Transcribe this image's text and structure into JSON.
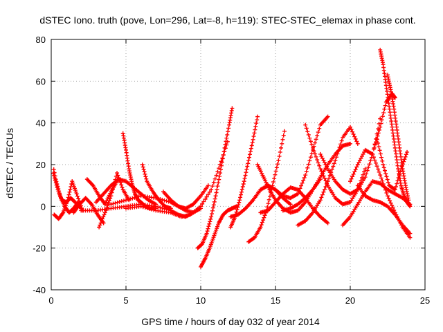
{
  "chart_data": {
    "type": "scatter",
    "title": "dSTEC Iono. truth (pove, Lon=296, Lat=-8, h=119): STEC-STEC_elemax in phase cont.",
    "xlabel": "GPS time / hours of day 032 of year 2014",
    "ylabel": "dSTEC  / TECUs",
    "xlim": [
      0,
      25
    ],
    "ylim": [
      -40,
      80
    ],
    "xticks": [
      0,
      5,
      10,
      15,
      20,
      25
    ],
    "yticks": [
      -40,
      -20,
      0,
      20,
      40,
      60,
      80
    ],
    "grid": true,
    "marker": "+",
    "color": "#ff0000",
    "series": [
      {
        "x": [
          0.0,
          0.3,
          0.6,
          0.9,
          1.2,
          1.5,
          1.8
        ],
        "y": [
          24,
          13,
          5,
          0,
          -3,
          -1,
          2
        ]
      },
      {
        "x": [
          0.1,
          0.4,
          0.7,
          1.0,
          1.3,
          1.6,
          2.0
        ],
        "y": [
          17,
          9,
          3,
          2,
          4,
          2,
          -1
        ]
      },
      {
        "x": [
          0.2,
          0.5,
          0.8,
          1.1,
          1.4,
          1.7,
          2.1
        ],
        "y": [
          -4,
          -6,
          -3,
          3,
          12,
          6,
          -2
        ]
      },
      {
        "x": [
          1.5,
          1.9,
          2.3,
          2.7,
          3.1,
          3.5
        ],
        "y": [
          -3,
          1,
          4,
          1,
          -4,
          -8
        ]
      },
      {
        "x": [
          2.4,
          2.8,
          3.2,
          3.6,
          4.0,
          4.4
        ],
        "y": [
          13,
          10,
          5,
          1,
          7,
          12
        ]
      },
      {
        "x": [
          3.2,
          3.6,
          4.0,
          4.4,
          4.8,
          5.2
        ],
        "y": [
          -10,
          -3,
          5,
          16,
          8,
          3
        ]
      },
      {
        "x": [
          3.0,
          3.5,
          4.0,
          4.5,
          5.0,
          5.5,
          6.0,
          6.5,
          7.0
        ],
        "y": [
          2,
          6,
          10,
          13,
          12,
          9,
          6,
          3,
          1
        ]
      },
      {
        "x": [
          4.8,
          5.0,
          5.2,
          5.4,
          5.6,
          5.8,
          6.0,
          6.3,
          6.6,
          7.0
        ],
        "y": [
          35,
          27,
          18,
          11,
          6,
          3,
          2,
          0,
          -1,
          -1
        ]
      },
      {
        "x": [
          6.1,
          6.4,
          6.8,
          7.2,
          7.6,
          8.0
        ],
        "y": [
          20,
          12,
          7,
          3,
          0,
          -1
        ]
      },
      {
        "x": [
          2.0,
          3.0,
          4.0,
          5.0,
          6.0,
          7.0,
          8.0,
          8.5,
          9.0,
          9.5
        ],
        "y": [
          -2,
          -2,
          -1,
          0,
          1,
          0,
          -2,
          -4,
          -5,
          -3
        ]
      },
      {
        "x": [
          4.0,
          5.0,
          6.0,
          7.0,
          8.0,
          8.5,
          9.0,
          9.5,
          10.0,
          10.5
        ],
        "y": [
          1,
          3,
          5,
          4,
          2,
          0,
          -1,
          1,
          5,
          10
        ]
      },
      {
        "x": [
          7.5,
          8.0,
          8.5,
          9.0,
          9.5,
          10.0
        ],
        "y": [
          7,
          3,
          0,
          -2,
          -3,
          -1
        ]
      },
      {
        "x": [
          5.0,
          6.0,
          7.0,
          8.0,
          8.7,
          9.3,
          10.0,
          10.7,
          11.3,
          11.8
        ],
        "y": [
          -1,
          0,
          -2,
          -3,
          -5,
          -4,
          0,
          8,
          20,
          31
        ]
      },
      {
        "x": [
          9.8,
          10.1,
          10.4,
          10.7,
          11.0,
          11.3,
          11.6,
          11.9,
          12.1
        ],
        "y": [
          -20,
          -18,
          -13,
          -5,
          5,
          16,
          28,
          39,
          47
        ]
      },
      {
        "x": [
          10.0,
          10.3,
          10.6,
          10.9,
          11.2,
          11.5,
          11.8,
          12.1,
          12.4
        ],
        "y": [
          -29,
          -25,
          -20,
          -14,
          -8,
          -4,
          -2,
          -1,
          0
        ]
      },
      {
        "x": [
          12.0,
          12.5,
          13.0,
          13.5,
          14.0,
          14.5,
          15.0,
          15.5,
          16.0
        ],
        "y": [
          -5,
          -4,
          -1,
          3,
          8,
          10,
          8,
          4,
          1
        ]
      },
      {
        "x": [
          12.0,
          12.3,
          12.6,
          12.9,
          13.2,
          13.5,
          13.8
        ],
        "y": [
          -10,
          -5,
          3,
          12,
          22,
          32,
          43
        ]
      },
      {
        "x": [
          13.2,
          13.6,
          14.0,
          14.4,
          14.8,
          15.2,
          15.6
        ],
        "y": [
          -17,
          -15,
          -10,
          -2,
          10,
          22,
          36
        ]
      },
      {
        "x": [
          13.8,
          14.2,
          14.6,
          15.0,
          15.5,
          16.0,
          16.5,
          17.0,
          17.5,
          18.0
        ],
        "y": [
          20,
          14,
          8,
          3,
          -1,
          -3,
          -2,
          2,
          8,
          13
        ]
      },
      {
        "x": [
          14.0,
          14.5,
          15.0,
          15.5,
          16.0,
          16.5,
          17.0,
          17.5,
          18.0,
          18.5
        ],
        "y": [
          -3,
          -2,
          2,
          6,
          9,
          8,
          4,
          -1,
          -5,
          -8
        ]
      },
      {
        "x": [
          13.5,
          14.0,
          14.5,
          15.0,
          15.5,
          16.0,
          16.5,
          17.0,
          17.5,
          18.0,
          18.5
        ],
        "y": [
          3,
          8,
          10,
          8,
          5,
          4,
          6,
          15,
          27,
          39,
          43
        ]
      },
      {
        "x": [
          15.5,
          16.0,
          16.5,
          17.0,
          17.5,
          18.0,
          18.5,
          19.0,
          19.5,
          20.0
        ],
        "y": [
          -2,
          -1,
          1,
          4,
          8,
          14,
          20,
          25,
          29,
          30
        ]
      },
      {
        "x": [
          17.0,
          17.5,
          18.0,
          18.5,
          19.0,
          19.5,
          20.0,
          20.5,
          21.0
        ],
        "y": [
          39,
          28,
          18,
          10,
          4,
          1,
          2,
          8,
          18
        ]
      },
      {
        "x": [
          16.5,
          17.0,
          17.5,
          18.0,
          18.5,
          19.0,
          19.5,
          20.0,
          20.5
        ],
        "y": [
          -9,
          -7,
          -3,
          3,
          12,
          22,
          33,
          38,
          30
        ]
      },
      {
        "x": [
          18.0,
          18.5,
          19.0,
          19.5,
          20.0,
          20.5,
          21.0,
          21.5,
          22.0
        ],
        "y": [
          25,
          18,
          12,
          8,
          6,
          8,
          14,
          25,
          42
        ]
      },
      {
        "x": [
          19.5,
          20.0,
          20.5,
          21.0,
          21.5,
          22.0,
          22.5,
          23.0,
          23.5,
          24.0
        ],
        "y": [
          -9,
          -5,
          1,
          7,
          12,
          11,
          8,
          6,
          4,
          1
        ]
      },
      {
        "x": [
          20.0,
          20.5,
          21.0,
          21.5,
          22.0,
          22.5,
          23.0,
          23.5,
          24.0
        ],
        "y": [
          12,
          20,
          27,
          25,
          15,
          5,
          -3,
          -10,
          -15
        ]
      },
      {
        "x": [
          20.5,
          21.0,
          21.5,
          22.0,
          22.5,
          23.0,
          23.5,
          24.0
        ],
        "y": [
          10,
          5,
          3,
          2,
          0,
          -4,
          -9,
          -13
        ]
      },
      {
        "x": [
          22.0,
          22.2,
          22.4,
          22.6,
          22.8,
          23.0,
          23.2,
          23.4,
          23.6,
          23.8,
          24.0
        ],
        "y": [
          75,
          68,
          58,
          48,
          38,
          28,
          18,
          10,
          5,
          2,
          0
        ]
      },
      {
        "x": [
          22.5,
          22.7,
          22.9,
          23.1,
          23.3,
          23.5,
          23.7,
          23.9
        ],
        "y": [
          63,
          56,
          48,
          38,
          28,
          18,
          10,
          3
        ]
      },
      {
        "x": [
          21.6,
          22.0,
          22.4,
          22.8,
          23.0
        ],
        "y": [
          28,
          38,
          50,
          54,
          52
        ]
      },
      {
        "x": [
          21.8,
          22.2,
          22.6,
          23.0,
          23.4,
          23.8
        ],
        "y": [
          32,
          20,
          10,
          8,
          18,
          26
        ]
      }
    ]
  }
}
